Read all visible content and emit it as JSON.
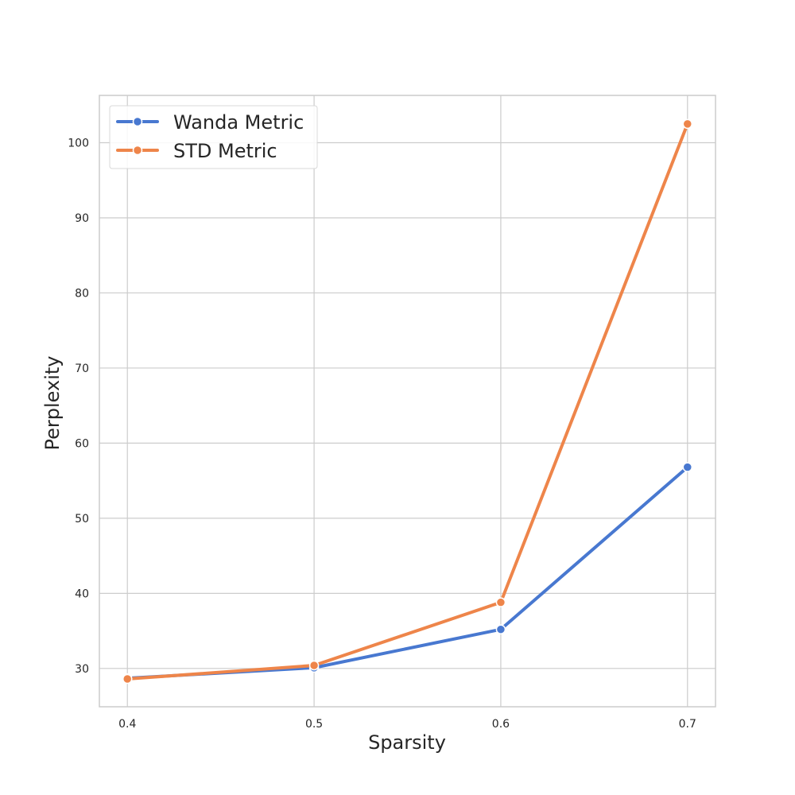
{
  "chart_data": {
    "type": "line",
    "title": "",
    "xlabel": "Sparsity",
    "ylabel": "Perplexity",
    "x": [
      0.4,
      0.5,
      0.6,
      0.7
    ],
    "x_ticks": [
      "0.4",
      "0.5",
      "0.6",
      "0.7"
    ],
    "y_ticks": [
      30,
      40,
      50,
      60,
      70,
      80,
      90,
      100
    ],
    "xlim": [
      0.385,
      0.715
    ],
    "ylim": [
      24.9,
      106.3
    ],
    "grid": true,
    "legend_position": "top-left",
    "series": [
      {
        "name": "Wanda Metric",
        "color": "#4878d0",
        "values": [
          28.7,
          30.1,
          35.2,
          56.8
        ]
      },
      {
        "name": "STD Metric",
        "color": "#ee854a",
        "values": [
          28.6,
          30.4,
          38.8,
          102.5
        ]
      }
    ]
  }
}
